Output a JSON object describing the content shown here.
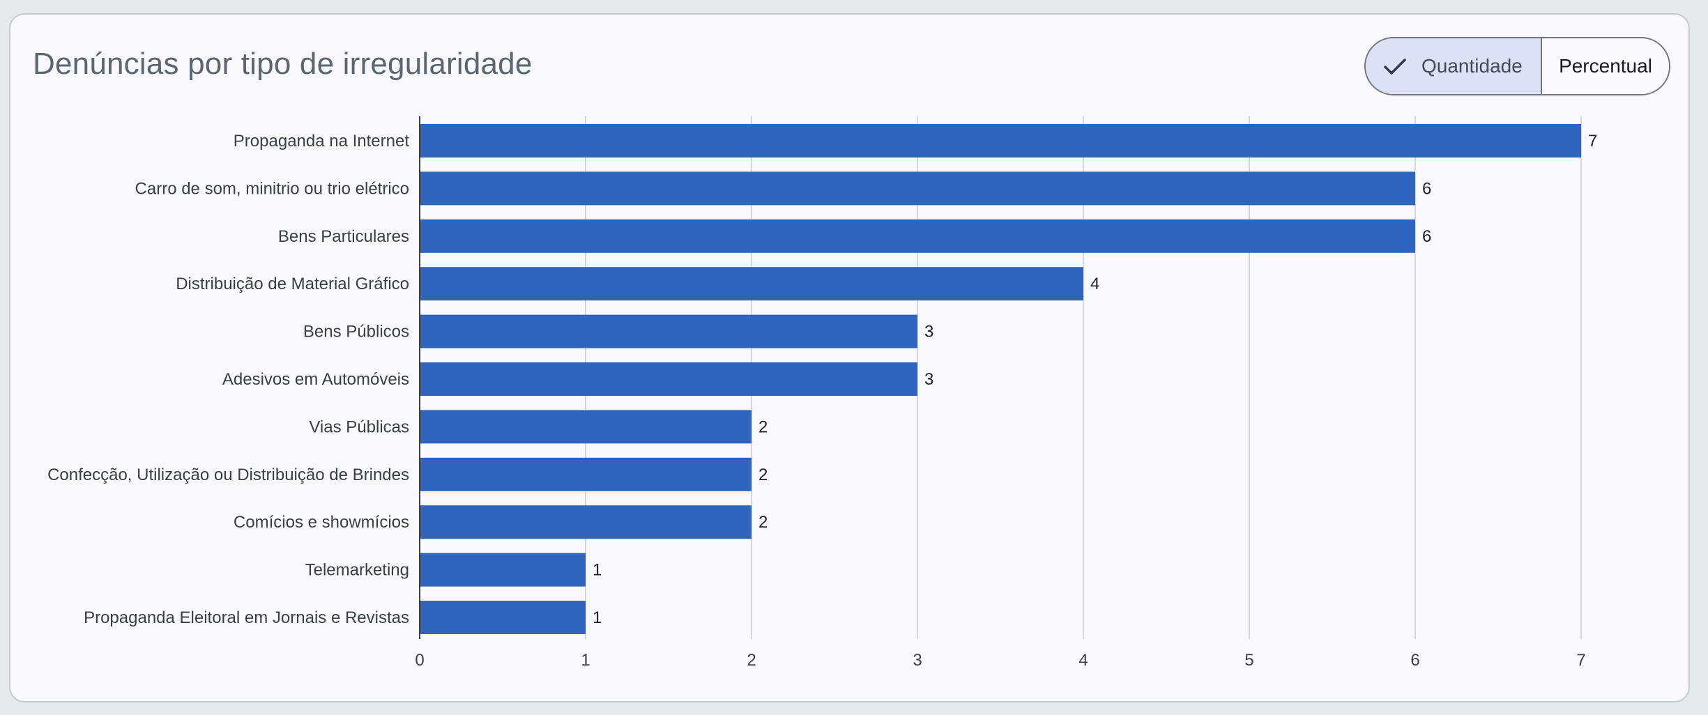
{
  "card": {
    "title": "Denúncias por tipo de irregularidade"
  },
  "toggle": {
    "options": [
      {
        "label": "Quantidade",
        "selected": true,
        "icon": "check-icon"
      },
      {
        "label": "Percentual",
        "selected": false
      }
    ]
  },
  "colors": {
    "bar": "#2f65bd",
    "grid": "#d7d8de",
    "axis": "#3c3f44",
    "toggle_selected_bg": "#dce1f5"
  },
  "chart_data": {
    "type": "bar",
    "orientation": "horizontal",
    "categories": [
      "Propaganda na Internet",
      "Carro de som, minitrio ou trio elétrico",
      "Bens Particulares",
      "Distribuição de Material Gráfico",
      "Bens Públicos",
      "Adesivos em Automóveis",
      "Vias Públicas",
      "Confecção, Utilização ou Distribuição de Brindes",
      "Comícios e showmícios",
      "Telemarketing",
      "Propaganda Eleitoral em Jornais e Revistas"
    ],
    "values": [
      7,
      6,
      6,
      4,
      3,
      3,
      2,
      2,
      2,
      1,
      1
    ],
    "xlim": [
      0,
      7
    ],
    "xticks": [
      0,
      1,
      2,
      3,
      4,
      5,
      6,
      7
    ],
    "grid": true,
    "data_labels": true
  }
}
